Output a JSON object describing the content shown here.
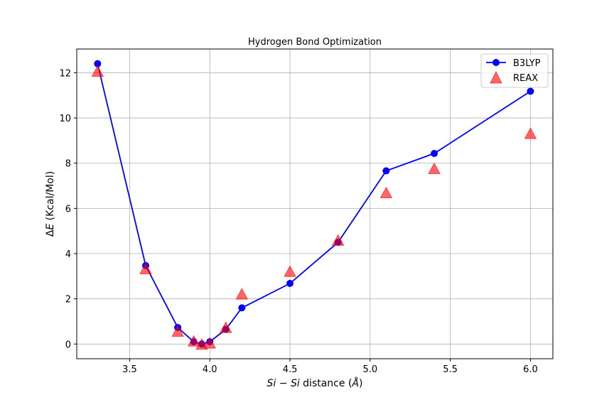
{
  "chart_data": {
    "type": "line",
    "title": "Hydrogen Bond Optimization",
    "xlabel": "Si − Si distance (Å)",
    "xlabel_italic": "Si − Si",
    "xlabel_rest": " distance (",
    "xlabel_unit": "Å",
    "xlabel_close": ")",
    "ylabel": "ΔE (Kcal/Mol)",
    "ylabel_delta": "Δ",
    "ylabel_italic": "E",
    "ylabel_rest": " (Kcal/Mol)",
    "xlim": [
      3.17,
      6.14
    ],
    "ylim": [
      -0.65,
      13.05
    ],
    "xticks": [
      3.5,
      4.0,
      4.5,
      5.0,
      5.5,
      6.0
    ],
    "xtick_labels": [
      "3.5",
      "4.0",
      "4.5",
      "5.0",
      "5.5",
      "6.0"
    ],
    "yticks": [
      0,
      2,
      4,
      6,
      8,
      10,
      12
    ],
    "ytick_labels": [
      "0",
      "2",
      "4",
      "6",
      "8",
      "10",
      "12"
    ],
    "grid": true,
    "legend_position": "top-right",
    "series": [
      {
        "name": "B3LYP",
        "color": "#0000ff",
        "marker": "circle",
        "line": true,
        "x": [
          3.3,
          3.6,
          3.8,
          3.9,
          3.95,
          4.0,
          4.1,
          4.2,
          4.5,
          4.8,
          5.1,
          5.4,
          6.0
        ],
        "y": [
          12.4,
          3.47,
          0.73,
          0.1,
          0.0,
          0.1,
          0.65,
          1.6,
          2.68,
          4.5,
          7.66,
          8.43,
          11.18
        ]
      },
      {
        "name": "REAX",
        "color": "#ff0000",
        "opacity": 0.6,
        "marker": "triangle",
        "line": false,
        "x": [
          3.3,
          3.6,
          3.8,
          3.9,
          3.95,
          4.0,
          4.1,
          4.2,
          4.5,
          4.8,
          5.1,
          5.4,
          6.0
        ],
        "y": [
          12.05,
          3.32,
          0.55,
          0.12,
          -0.02,
          0.03,
          0.72,
          2.2,
          3.2,
          4.58,
          6.68,
          7.75,
          9.3
        ]
      }
    ]
  }
}
